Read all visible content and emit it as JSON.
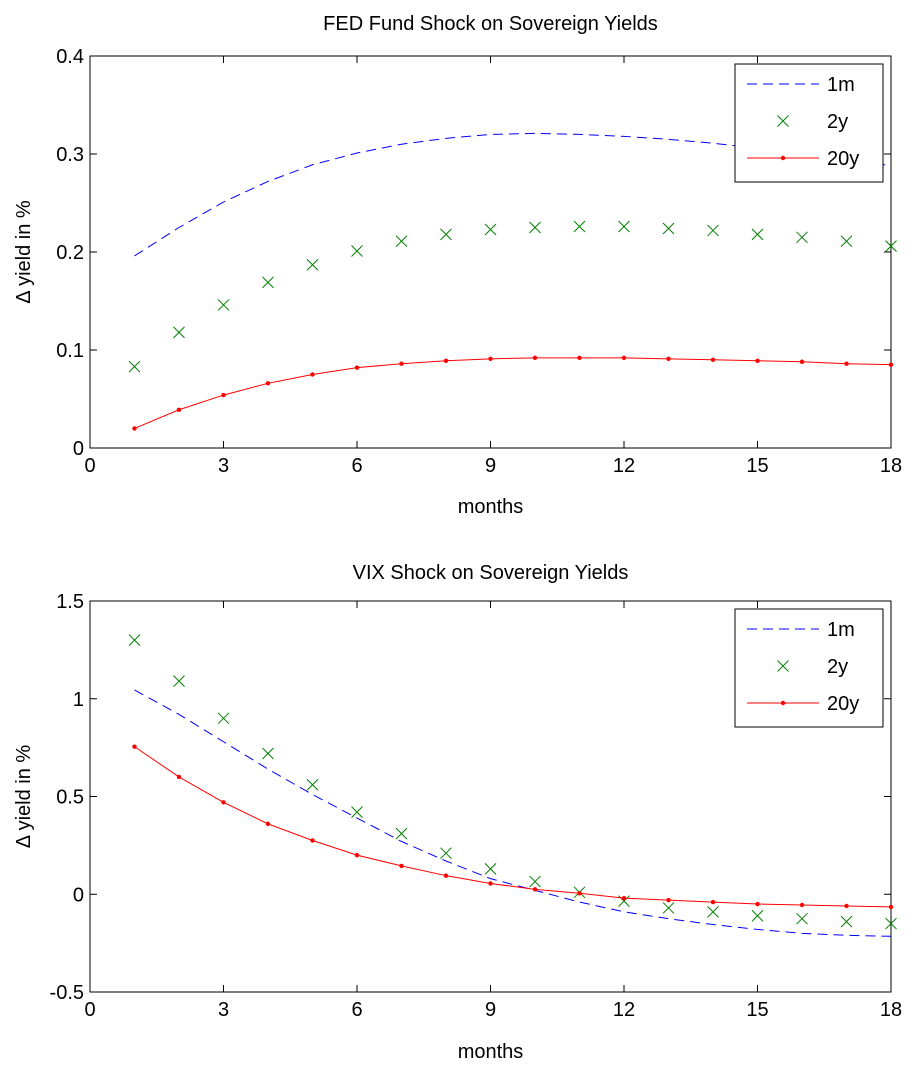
{
  "chart_data": [
    {
      "type": "line",
      "title": "FED Fund Shock on Sovereign Yields",
      "xlabel": "months",
      "ylabel": "Δ yield in %",
      "xlim": [
        0,
        18
      ],
      "ylim": [
        0,
        0.4
      ],
      "xticks": [
        0,
        3,
        6,
        9,
        12,
        15,
        18
      ],
      "yticks": [
        0,
        0.1,
        0.2,
        0.3,
        0.4
      ],
      "xtick_labels": [
        "0",
        "3",
        "6",
        "9",
        "12",
        "15",
        "18"
      ],
      "ytick_labels": [
        "0",
        "0.1",
        "0.2",
        "0.3",
        "0.4"
      ],
      "grid": false,
      "legend_position": "top-right",
      "x": [
        1,
        2,
        3,
        4,
        5,
        6,
        7,
        8,
        9,
        10,
        11,
        12,
        13,
        14,
        15,
        16,
        17,
        18
      ],
      "series": [
        {
          "name": "1m",
          "color": "#0000ff",
          "style": "dashed",
          "values": [
            0.196,
            0.225,
            0.251,
            0.272,
            0.289,
            0.301,
            0.31,
            0.316,
            0.32,
            0.321,
            0.32,
            0.318,
            0.315,
            0.311,
            0.306,
            0.301,
            0.295,
            0.288
          ]
        },
        {
          "name": "2y",
          "color": "#008000",
          "style": "x-markers",
          "values": [
            0.083,
            0.118,
            0.146,
            0.169,
            0.187,
            0.201,
            0.211,
            0.218,
            0.223,
            0.225,
            0.226,
            0.226,
            0.224,
            0.222,
            0.218,
            0.215,
            0.211,
            0.206
          ]
        },
        {
          "name": "20y",
          "color": "#ff0000",
          "style": "solid-dots",
          "values": [
            0.02,
            0.039,
            0.054,
            0.066,
            0.075,
            0.082,
            0.086,
            0.089,
            0.091,
            0.092,
            0.092,
            0.092,
            0.091,
            0.09,
            0.089,
            0.088,
            0.086,
            0.085
          ]
        }
      ]
    },
    {
      "type": "line",
      "title": "VIX Shock on Sovereign Yields",
      "xlabel": "months",
      "ylabel": "Δ yield in %",
      "xlim": [
        0,
        18
      ],
      "ylim": [
        -0.5,
        1.5
      ],
      "xticks": [
        0,
        3,
        6,
        9,
        12,
        15,
        18
      ],
      "yticks": [
        -0.5,
        0,
        0.5,
        1,
        1.5
      ],
      "xtick_labels": [
        "0",
        "3",
        "6",
        "9",
        "12",
        "15",
        "18"
      ],
      "ytick_labels": [
        "-0.5",
        "0",
        "0.5",
        "1",
        "1.5"
      ],
      "grid": false,
      "legend_position": "top-right",
      "x": [
        1,
        2,
        3,
        4,
        5,
        6,
        7,
        8,
        9,
        10,
        11,
        12,
        13,
        14,
        15,
        16,
        17,
        18
      ],
      "series": [
        {
          "name": "1m",
          "color": "#0000ff",
          "style": "dashed",
          "values": [
            1.045,
            0.92,
            0.78,
            0.64,
            0.51,
            0.39,
            0.27,
            0.17,
            0.08,
            0.02,
            -0.04,
            -0.09,
            -0.125,
            -0.155,
            -0.18,
            -0.2,
            -0.21,
            -0.215
          ]
        },
        {
          "name": "2y",
          "color": "#008000",
          "style": "x-markers",
          "values": [
            1.3,
            1.09,
            0.9,
            0.72,
            0.56,
            0.42,
            0.31,
            0.21,
            0.13,
            0.065,
            0.01,
            -0.035,
            -0.07,
            -0.09,
            -0.11,
            -0.125,
            -0.14,
            -0.15
          ]
        },
        {
          "name": "20y",
          "color": "#ff0000",
          "style": "solid-dots",
          "values": [
            0.755,
            0.6,
            0.47,
            0.36,
            0.275,
            0.2,
            0.145,
            0.095,
            0.055,
            0.025,
            0.005,
            -0.02,
            -0.03,
            -0.04,
            -0.05,
            -0.055,
            -0.06,
            -0.065
          ]
        }
      ]
    }
  ]
}
